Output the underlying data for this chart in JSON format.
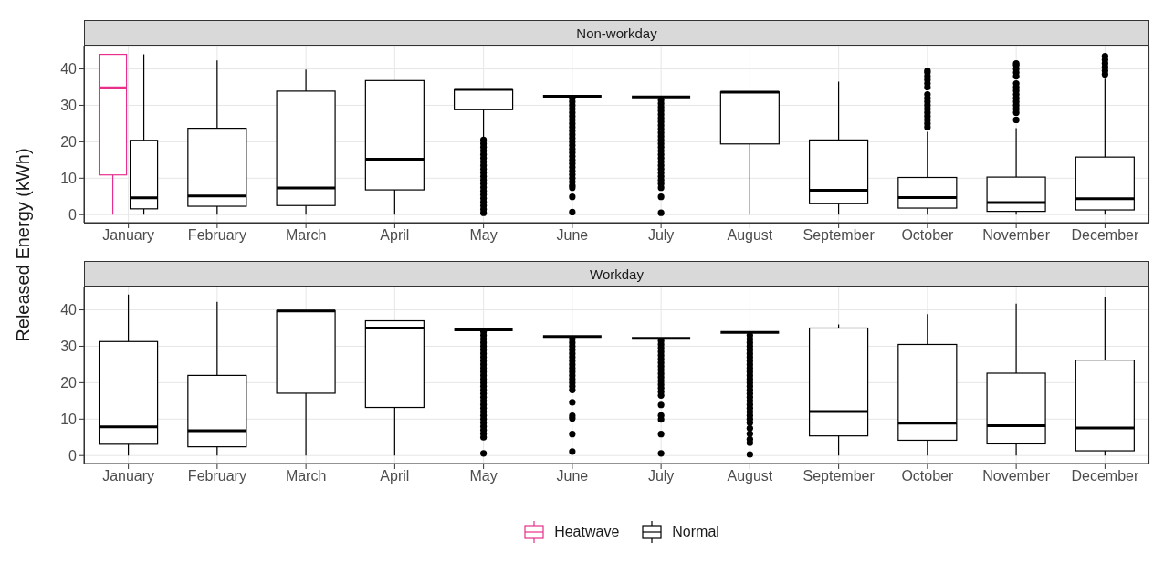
{
  "chart_data": [
    {
      "type": "box",
      "title": "Non-workday",
      "ylabel": "Released Energy (kWh)",
      "categories": [
        "January",
        "February",
        "March",
        "April",
        "May",
        "June",
        "July",
        "August",
        "September",
        "October",
        "November",
        "December"
      ],
      "ylim": [
        -2.2,
        46.4
      ],
      "yticks": [
        0,
        10,
        20,
        30,
        40
      ],
      "grid": true,
      "legend": "bottom",
      "series": [
        {
          "name": "Heatwave",
          "color": "#e8308a",
          "boxes": [
            {
              "low": 0,
              "q1": 10.9,
              "median": 34.8,
              "q3": 44,
              "high": 44
            },
            null,
            null,
            null,
            null,
            null,
            null,
            null,
            null,
            null,
            null,
            null
          ]
        },
        {
          "name": "Normal",
          "color": "#000000",
          "boxes": [
            {
              "low": 0,
              "q1": 1.6,
              "median": 4.6,
              "q3": 20.4,
              "high": 44
            },
            {
              "low": 0,
              "q1": 2.3,
              "median": 5.1,
              "q3": 23.7,
              "high": 42.3
            },
            {
              "low": 0,
              "q1": 2.5,
              "median": 7.3,
              "q3": 33.9,
              "high": 39.8
            },
            {
              "low": 0,
              "q1": 6.8,
              "median": 15.2,
              "q3": 36.8,
              "high": 36.8
            },
            {
              "low": 21,
              "q1": 28.8,
              "median": 34.4,
              "q3": 34.5,
              "high": 34.5,
              "outliers": [
                20.5,
                19.5,
                18.5,
                17.5,
                16.5,
                15.5,
                14.5,
                13.5,
                12.5,
                11.5,
                10.5,
                9.5,
                8.5,
                7.5,
                6.5,
                5.5,
                4.5,
                3.5,
                2.5,
                1.5,
                0.5
              ]
            },
            {
              "low": 32.5,
              "q1": 32.5,
              "median": 32.5,
              "q3": 32.5,
              "high": 32.5,
              "outliers": [
                32,
                31,
                30,
                29,
                28,
                27,
                26,
                25,
                24,
                23,
                22,
                21,
                20,
                19,
                18,
                17,
                16,
                15,
                14,
                13,
                12,
                11,
                10,
                9,
                8,
                7.4,
                4.9,
                0.7
              ]
            },
            {
              "low": 32.3,
              "q1": 32.3,
              "median": 32.3,
              "q3": 32.3,
              "high": 32.3,
              "outliers": [
                31.5,
                30.5,
                29.5,
                28.5,
                27.5,
                26.5,
                25.5,
                24.5,
                23.5,
                22.5,
                21.5,
                20.5,
                19.5,
                18.5,
                17.5,
                16.5,
                15.5,
                14.5,
                13.5,
                12.5,
                11.5,
                10.5,
                9.5,
                8.5,
                7.4,
                4.9,
                0.5
              ]
            },
            {
              "low": 0,
              "q1": 19.4,
              "median": 33.6,
              "q3": 33.7,
              "high": 33.7
            },
            {
              "low": 0,
              "q1": 3,
              "median": 6.7,
              "q3": 20.5,
              "high": 36.5
            },
            {
              "low": 0,
              "q1": 1.8,
              "median": 4.7,
              "q3": 10.2,
              "high": 22.7,
              "outliers": [
                24,
                25,
                26,
                27,
                28,
                29,
                30,
                31,
                32,
                33,
                35,
                36,
                37,
                38,
                39,
                39.5
              ]
            },
            {
              "low": 0,
              "q1": 0.9,
              "median": 3.3,
              "q3": 10.3,
              "high": 23.7,
              "outliers": [
                26,
                28,
                29,
                30,
                31,
                32,
                33,
                34,
                35,
                36,
                38,
                39,
                40,
                41,
                41.5
              ]
            },
            {
              "low": 0,
              "q1": 1.3,
              "median": 4.4,
              "q3": 15.8,
              "high": 37.3,
              "outliers": [
                38.5,
                39.5,
                40.5,
                41.5,
                42.5,
                43.5
              ]
            }
          ]
        }
      ]
    },
    {
      "type": "box",
      "title": "Workday",
      "categories": [
        "January",
        "February",
        "March",
        "April",
        "May",
        "June",
        "July",
        "August",
        "September",
        "October",
        "November",
        "December"
      ],
      "ylim": [
        -2.2,
        46.4
      ],
      "yticks": [
        0,
        10,
        20,
        30,
        40
      ],
      "grid": true,
      "series": [
        {
          "color": "#000000",
          "boxes": [
            {
              "low": 0,
              "q1": 3.1,
              "median": 7.9,
              "q3": 31.3,
              "high": 44.2
            },
            {
              "low": 0,
              "q1": 2.4,
              "median": 6.8,
              "q3": 22,
              "high": 42.2
            },
            {
              "low": 0,
              "q1": 17.1,
              "median": 39.7,
              "q3": 39.8,
              "high": 39.8
            },
            {
              "low": 0,
              "q1": 13.2,
              "median": 35,
              "q3": 37,
              "high": 37
            },
            {
              "low": 34.5,
              "q1": 34.5,
              "median": 34.5,
              "q3": 34.5,
              "high": 34.5,
              "outliers": [
                34,
                33,
                32,
                31,
                30,
                29,
                28,
                27,
                26,
                25,
                24,
                23,
                22,
                21,
                20,
                19,
                18,
                17,
                16,
                15,
                14,
                13,
                12,
                11,
                10,
                9,
                8,
                7,
                6,
                5,
                0.6
              ]
            },
            {
              "low": 32.7,
              "q1": 32.7,
              "median": 32.7,
              "q3": 32.7,
              "high": 32.7,
              "outliers": [
                32,
                31,
                30,
                29,
                28,
                27,
                26,
                25,
                24,
                23,
                22,
                21,
                20,
                19,
                18,
                14.6,
                10.9,
                10.2,
                5.9,
                1.1
              ]
            },
            {
              "low": 32.2,
              "q1": 32.2,
              "median": 32.2,
              "q3": 32.2,
              "high": 32.2,
              "outliers": [
                31.5,
                30.5,
                29.5,
                28.5,
                27.5,
                26.5,
                25.5,
                24.5,
                23.5,
                22.5,
                21.5,
                20.5,
                19.5,
                18.5,
                17.5,
                16.5,
                13.9,
                11,
                9.9,
                5.9,
                0.6
              ]
            },
            {
              "low": 33.8,
              "q1": 33.8,
              "median": 33.8,
              "q3": 33.8,
              "high": 33.8,
              "outliers": [
                33,
                32,
                31,
                30,
                29,
                28,
                27,
                26,
                25,
                24,
                23,
                22,
                21,
                20,
                19,
                18,
                17,
                16,
                15,
                14,
                13,
                12,
                11,
                10,
                9,
                7.5,
                6,
                4.5,
                3.5,
                0.3
              ]
            },
            {
              "low": 0,
              "q1": 5.4,
              "median": 12.1,
              "q3": 35,
              "high": 36
            },
            {
              "low": 0,
              "q1": 4.2,
              "median": 8.9,
              "q3": 30.5,
              "high": 38.8
            },
            {
              "low": 0,
              "q1": 3.2,
              "median": 8.2,
              "q3": 22.6,
              "high": 41.7
            },
            {
              "low": 0,
              "q1": 1.3,
              "median": 7.6,
              "q3": 26.2,
              "high": 43.5
            }
          ]
        }
      ]
    }
  ]
}
